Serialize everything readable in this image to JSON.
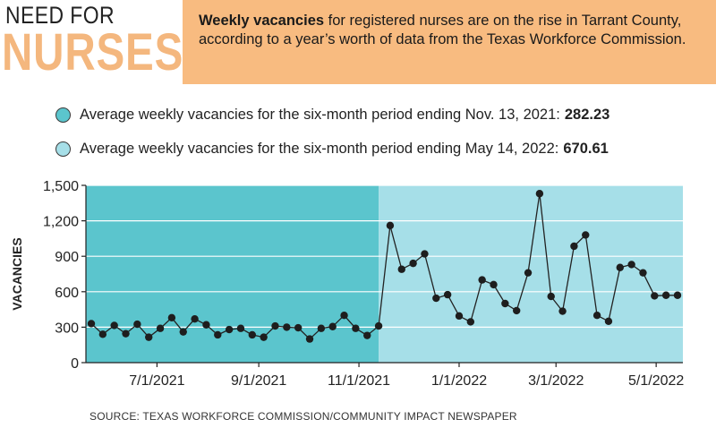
{
  "header": {
    "title_line1": "NEED FOR",
    "title_line2": "NURSES",
    "intro_bold": "Weekly vacancies",
    "intro_rest": " for registered nurses are on the rise in Tarrant County, according to a year’s worth of data from the Texas Workforce Commission."
  },
  "legend": [
    {
      "label": "Average weekly vacancies for the six-month period ending Nov. 13, 2021:",
      "value": "282.23",
      "color": "#5bc5cd"
    },
    {
      "label": "Average weekly vacancies for the six-month period ending May 14, 2022:",
      "value": "670.61",
      "color": "#a6dfe8"
    }
  ],
  "colors": {
    "accent": "#f8bb80",
    "title_orange": "#f4b77e",
    "period1": "#5bc5cd",
    "period2": "#a6dfe8"
  },
  "source": "SOURCE: TEXAS WORKFORCE COMMISSION/COMMUNITY IMPACT NEWSPAPER",
  "chart_data": {
    "type": "line",
    "ylabel": "VACANCIES",
    "ylim": [
      0,
      1500
    ],
    "yticks": [
      0,
      300,
      600,
      900,
      1200,
      1500
    ],
    "ytick_labels": [
      "0",
      "300",
      "600",
      "900",
      "1,200",
      "1,500"
    ],
    "x_start": "2021-05-22",
    "x_end": "2022-05-14",
    "xtick_dates": [
      "2021-07-01",
      "2021-09-01",
      "2021-11-01",
      "2022-01-01",
      "2022-03-01",
      "2022-05-01"
    ],
    "xtick_labels": [
      "7/1/2021",
      "9/1/2021",
      "11/1/2021",
      "1/1/2022",
      "3/1/2022",
      "5/1/2022"
    ],
    "grid": true,
    "shaded_periods": [
      {
        "start": "2021-05-22",
        "end": "2021-11-13",
        "color": "#5bc5cd"
      },
      {
        "start": "2021-11-13",
        "end": "2022-05-14",
        "color": "#a6dfe8"
      }
    ],
    "series": [
      {
        "x": [
          "2021-05-22",
          "2021-05-29",
          "2021-06-05",
          "2021-06-12",
          "2021-06-19",
          "2021-06-26",
          "2021-07-03",
          "2021-07-10",
          "2021-07-17",
          "2021-07-24",
          "2021-07-31",
          "2021-08-07",
          "2021-08-14",
          "2021-08-21",
          "2021-08-28",
          "2021-09-04",
          "2021-09-11",
          "2021-09-18",
          "2021-09-25",
          "2021-10-02",
          "2021-10-09",
          "2021-10-16",
          "2021-10-23",
          "2021-10-30",
          "2021-11-06",
          "2021-11-13",
          "2021-11-20",
          "2021-11-27",
          "2021-12-04",
          "2021-12-11",
          "2021-12-18",
          "2021-12-25",
          "2022-01-01",
          "2022-01-08",
          "2022-01-15",
          "2022-01-22",
          "2022-01-29",
          "2022-02-05",
          "2022-02-12",
          "2022-02-19",
          "2022-02-26",
          "2022-03-05",
          "2022-03-12",
          "2022-03-19",
          "2022-03-26",
          "2022-04-02",
          "2022-04-09",
          "2022-04-16",
          "2022-04-23",
          "2022-04-30",
          "2022-05-07",
          "2022-05-14"
        ],
        "values": [
          330,
          240,
          315,
          245,
          325,
          215,
          290,
          380,
          260,
          370,
          320,
          235,
          280,
          290,
          235,
          215,
          310,
          300,
          295,
          200,
          290,
          305,
          400,
          290,
          230,
          310,
          1160,
          790,
          840,
          920,
          545,
          575,
          395,
          345,
          700,
          660,
          500,
          440,
          760,
          1430,
          560,
          435,
          985,
          1080,
          400,
          350,
          805,
          830,
          760,
          565,
          570,
          570
        ]
      }
    ]
  }
}
